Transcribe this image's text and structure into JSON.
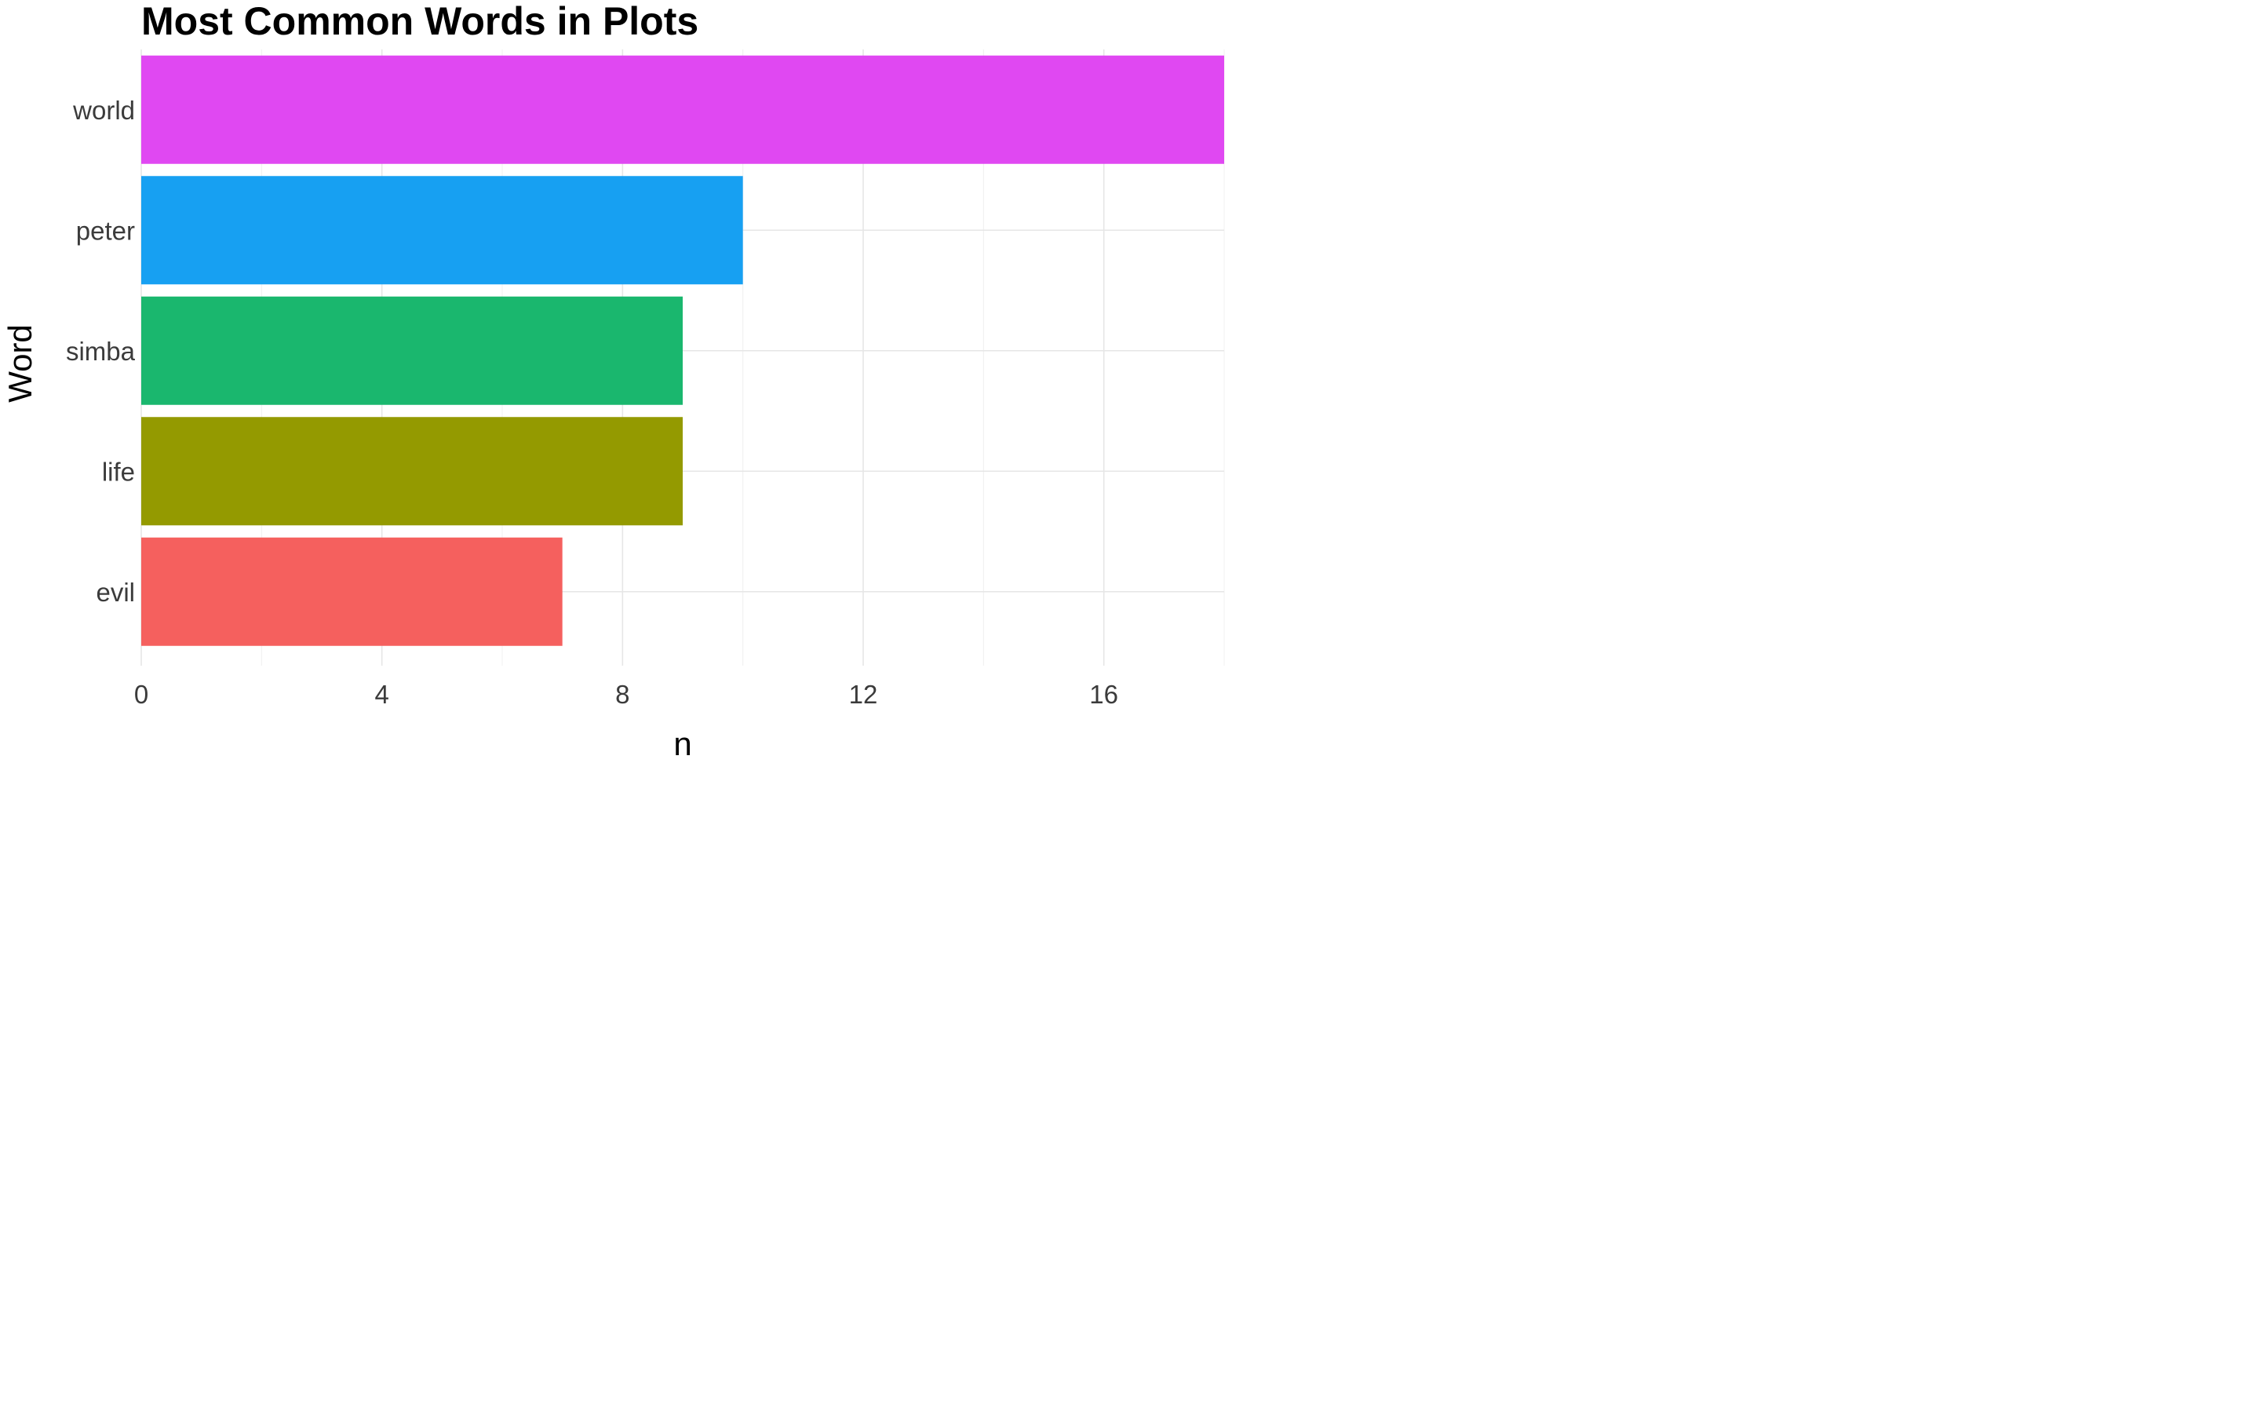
{
  "chart_data": {
    "type": "bar",
    "orientation": "horizontal",
    "title": "Most Common Words in Plots",
    "xlabel": "n",
    "ylabel": "Word",
    "categories": [
      "world",
      "peter",
      "simba",
      "life",
      "evil"
    ],
    "values": [
      18,
      10,
      9,
      9,
      7
    ],
    "colors": [
      "#E048F2",
      "#17A0F2",
      "#1AB76E",
      "#949A00",
      "#F5605E"
    ],
    "xlim": [
      0,
      18
    ],
    "xticks": [
      0,
      4,
      8,
      12,
      16
    ],
    "xtick_labels": [
      "0",
      "4",
      "8",
      "12",
      "16"
    ],
    "grid": true,
    "legend": "none"
  }
}
